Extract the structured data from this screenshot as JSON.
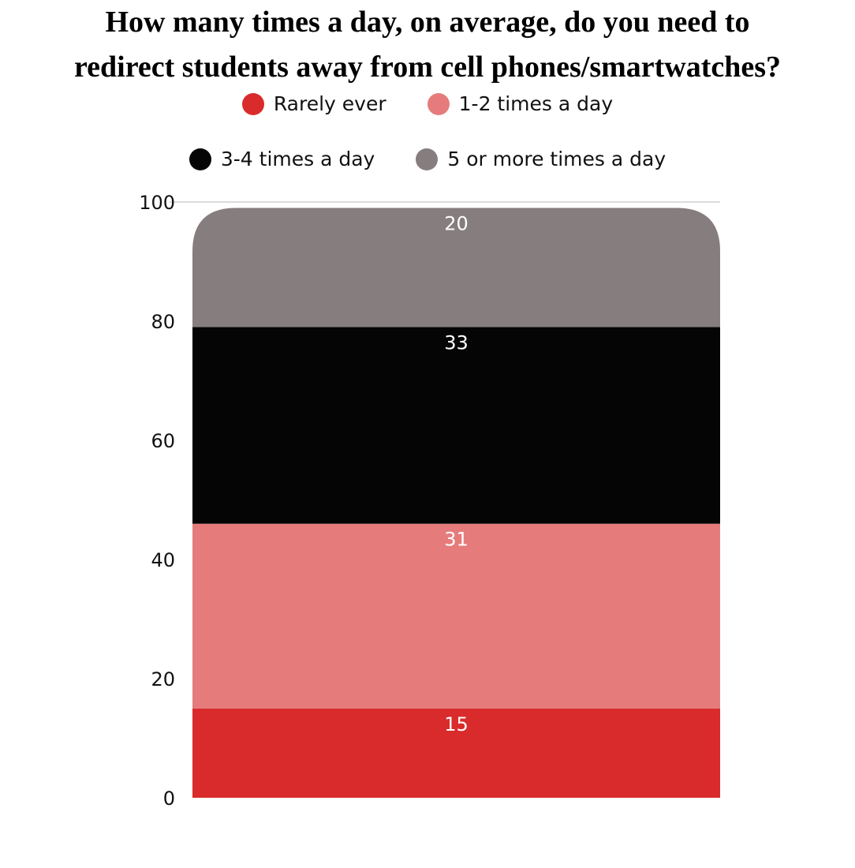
{
  "chart_data": {
    "type": "bar",
    "stacked": true,
    "title": "How many times a day, on average, do you need to redirect students away from cell phones/smartwatches?",
    "title_lines": [
      "How many times a day, on average, do you need to",
      "redirect students away from cell phones/smartwatches?"
    ],
    "categories": [
      ""
    ],
    "series": [
      {
        "name": "Rarely ever",
        "values": [
          15
        ],
        "color": "#d92b2b"
      },
      {
        "name": "1-2 times a day",
        "values": [
          31
        ],
        "color": "#e57c7b"
      },
      {
        "name": "3-4 times a day",
        "values": [
          33
        ],
        "color": "#050505"
      },
      {
        "name": "5 or more times a day",
        "values": [
          20
        ],
        "color": "#857d7e"
      }
    ],
    "data_labels": [
      "15",
      "31",
      "33",
      "20"
    ],
    "yticks": [
      0,
      20,
      40,
      60,
      80,
      100
    ],
    "ylim": [
      0,
      100
    ],
    "grid": false,
    "legend_position": "top"
  }
}
